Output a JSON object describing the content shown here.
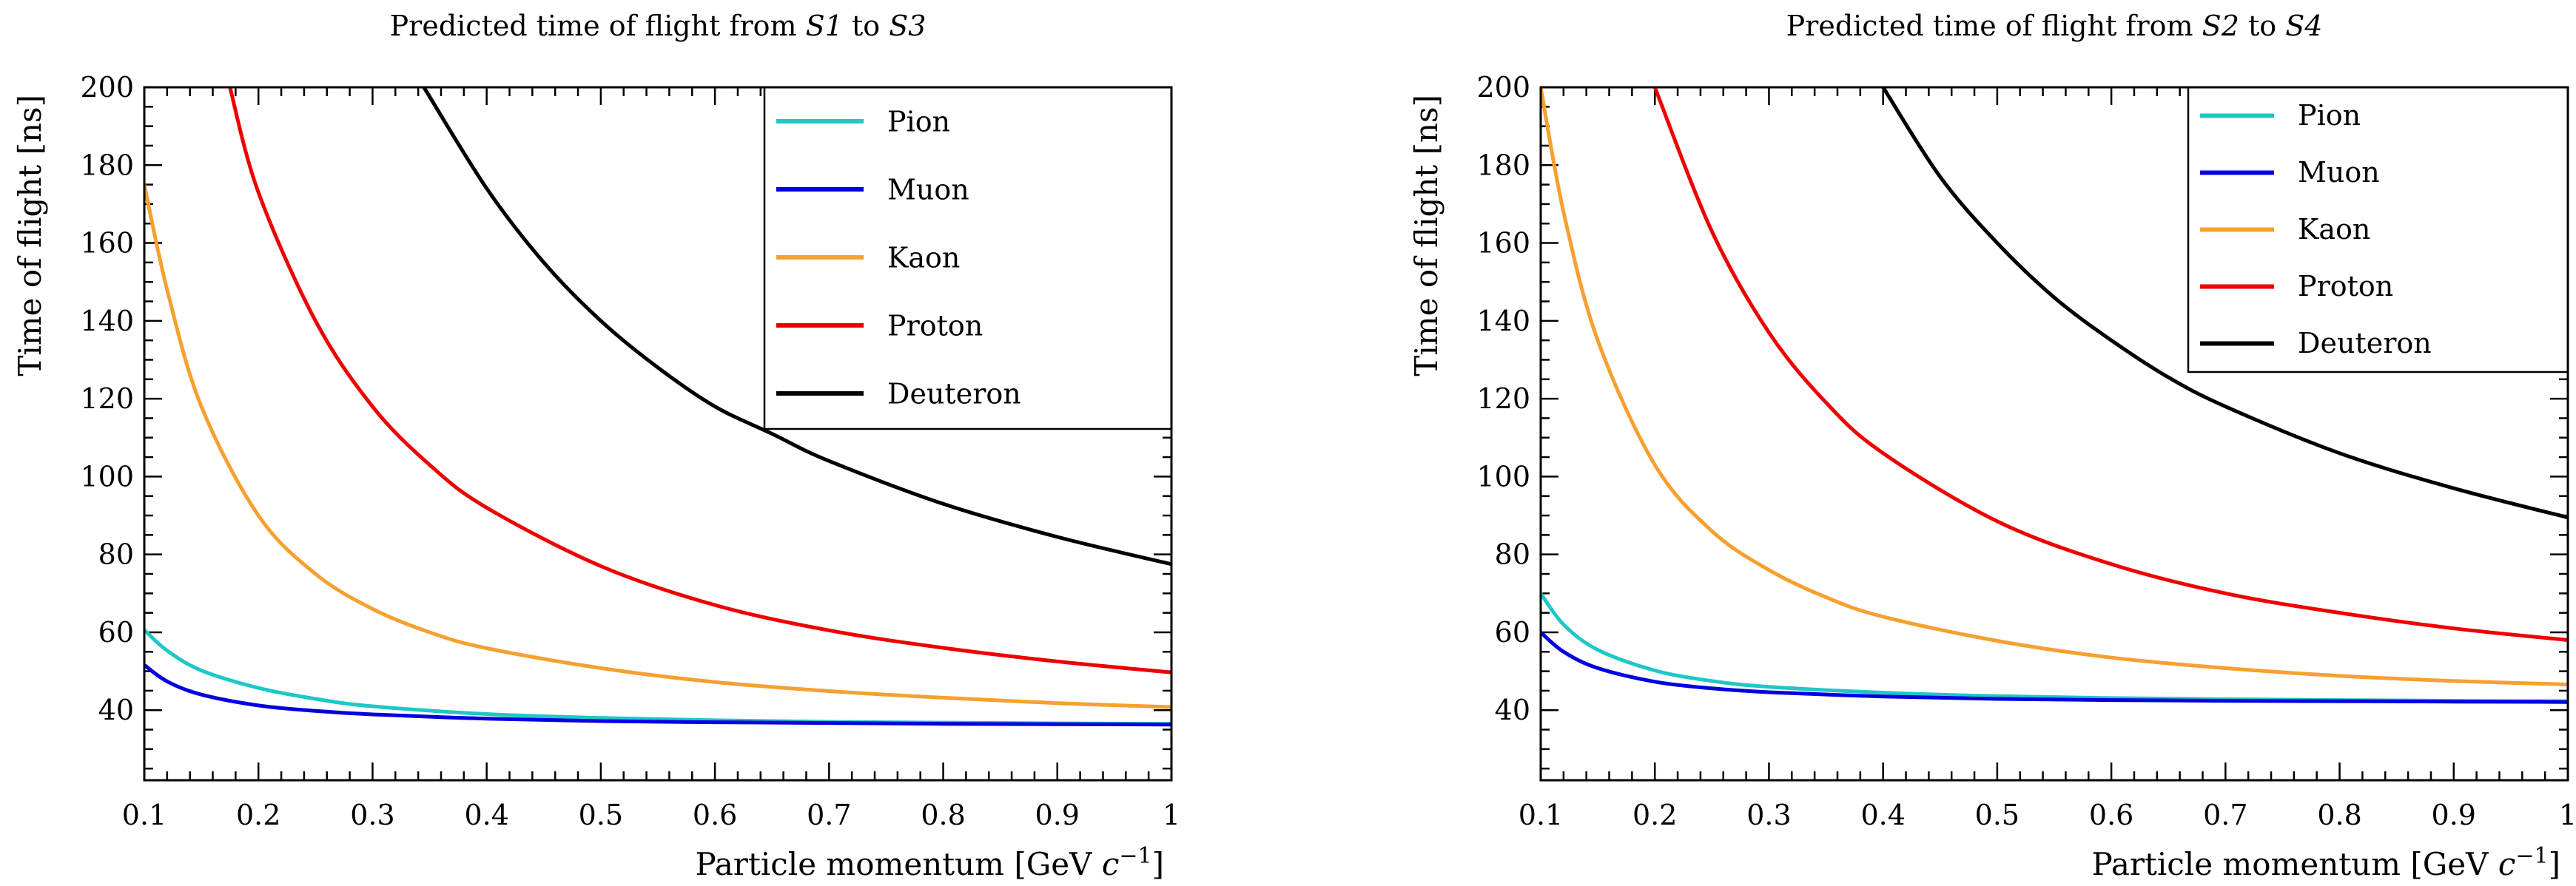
{
  "chart_data": [
    {
      "type": "line",
      "title": {
        "prefix": "Predicted time of flight from ",
        "from": "S1",
        "mid": " to ",
        "to": "S3"
      },
      "xlabel": {
        "text": "Particle momentum [GeV ",
        "unit": "c",
        "exp": "−1",
        "close": "]"
      },
      "ylabel": "Time of flight [ns]",
      "xlim": [
        0.1,
        1.0
      ],
      "ylim": [
        22,
        200
      ],
      "xticks": [
        0.1,
        0.2,
        0.3,
        0.4,
        0.5,
        0.6,
        0.7,
        0.8,
        0.9,
        1.0
      ],
      "xtick_labels": [
        "0.1",
        "0.2",
        "0.3",
        "0.4",
        "0.5",
        "0.6",
        "0.7",
        "0.8",
        "0.9",
        "1"
      ],
      "yticks": [
        40,
        60,
        80,
        100,
        120,
        140,
        160,
        180,
        200
      ],
      "ytick_labels": [
        "40",
        "60",
        "80",
        "100",
        "120",
        "140",
        "160",
        "180",
        "200"
      ],
      "legend_position": "top-right",
      "series": [
        {
          "name": "Pion",
          "color": "#1fc7c7",
          "x": [
            0.1,
            0.12,
            0.15,
            0.2,
            0.25,
            0.3,
            0.4,
            0.5,
            0.6,
            0.7,
            0.8,
            0.9,
            1.0
          ],
          "values": [
            60.6,
            55.3,
            50.2,
            45.7,
            42.9,
            41.0,
            39.0,
            38.0,
            37.4,
            37.0,
            36.8,
            36.6,
            36.5
          ]
        },
        {
          "name": "Muon",
          "color": "#0000e0",
          "x": [
            0.1,
            0.12,
            0.15,
            0.2,
            0.25,
            0.3,
            0.4,
            0.5,
            0.6,
            0.7,
            0.8,
            0.9,
            1.0
          ],
          "values": [
            51.6,
            47.4,
            44.0,
            41.2,
            39.8,
            38.9,
            37.8,
            37.2,
            36.9,
            36.7,
            36.5,
            36.4,
            36.3
          ]
        },
        {
          "name": "Kaon",
          "color": "#f5a030",
          "x": [
            0.1,
            0.12,
            0.15,
            0.2,
            0.25,
            0.3,
            0.35,
            0.4,
            0.5,
            0.6,
            0.7,
            0.8,
            0.9,
            1.0
          ],
          "values": [
            175.0,
            148.0,
            118.0,
            90.0,
            75.0,
            66.0,
            60.0,
            55.9,
            50.8,
            47.2,
            44.9,
            43.2,
            41.8,
            40.8
          ]
        },
        {
          "name": "Proton",
          "color": "#ee0000",
          "x": [
            0.175,
            0.2,
            0.25,
            0.3,
            0.35,
            0.4,
            0.5,
            0.6,
            0.7,
            0.8,
            0.9,
            1.0
          ],
          "values": [
            200.0,
            173.0,
            140.0,
            118.0,
            103.0,
            92.0,
            77.0,
            67.0,
            60.5,
            56.0,
            52.5,
            49.7
          ]
        },
        {
          "name": "Deuteron",
          "color": "#000000",
          "x": [
            0.345,
            0.4,
            0.45,
            0.5,
            0.55,
            0.6,
            0.65,
            0.7,
            0.8,
            0.9,
            1.0
          ],
          "values": [
            200.0,
            174.0,
            155.0,
            140.0,
            128.0,
            118.0,
            111.0,
            104.0,
            93.0,
            84.5,
            77.5
          ]
        }
      ]
    },
    {
      "type": "line",
      "title": {
        "prefix": "Predicted time of flight from ",
        "from": "S2",
        "mid": " to ",
        "to": "S4"
      },
      "xlabel": {
        "text": "Particle momentum [GeV ",
        "unit": "c",
        "exp": "−1",
        "close": "]"
      },
      "ylabel": "Time of flight [ns]",
      "xlim": [
        0.1,
        1.0
      ],
      "ylim": [
        22,
        200
      ],
      "xticks": [
        0.1,
        0.2,
        0.3,
        0.4,
        0.5,
        0.6,
        0.7,
        0.8,
        0.9,
        1.0
      ],
      "xtick_labels": [
        "0.1",
        "0.2",
        "0.3",
        "0.4",
        "0.5",
        "0.6",
        "0.7",
        "0.8",
        "0.9",
        "1"
      ],
      "yticks": [
        40,
        60,
        80,
        100,
        120,
        140,
        160,
        180,
        200
      ],
      "ytick_labels": [
        "40",
        "60",
        "80",
        "100",
        "120",
        "140",
        "160",
        "180",
        "200"
      ],
      "legend_position": "top-right",
      "series": [
        {
          "name": "Pion",
          "color": "#1fc7c7",
          "x": [
            0.1,
            0.12,
            0.15,
            0.2,
            0.25,
            0.3,
            0.4,
            0.5,
            0.6,
            0.7,
            0.8,
            0.9,
            1.0
          ],
          "values": [
            70.0,
            62.0,
            55.5,
            50.2,
            47.5,
            46.0,
            44.5,
            43.6,
            43.1,
            42.8,
            42.6,
            42.4,
            42.3
          ]
        },
        {
          "name": "Muon",
          "color": "#0000e0",
          "x": [
            0.1,
            0.12,
            0.15,
            0.2,
            0.25,
            0.3,
            0.4,
            0.5,
            0.6,
            0.7,
            0.8,
            0.9,
            1.0
          ],
          "values": [
            60.0,
            55.0,
            50.8,
            47.3,
            45.6,
            44.6,
            43.5,
            42.9,
            42.6,
            42.4,
            42.3,
            42.2,
            42.1
          ]
        },
        {
          "name": "Kaon",
          "color": "#f5a030",
          "x": [
            0.1,
            0.12,
            0.15,
            0.2,
            0.25,
            0.3,
            0.35,
            0.4,
            0.5,
            0.6,
            0.7,
            0.8,
            0.9,
            1.0
          ],
          "values": [
            200.0,
            168.0,
            135.0,
            103.0,
            86.0,
            76.0,
            69.0,
            64.0,
            57.8,
            53.5,
            50.8,
            48.8,
            47.5,
            46.6
          ]
        },
        {
          "name": "Proton",
          "color": "#ee0000",
          "x": [
            0.2,
            0.25,
            0.3,
            0.35,
            0.4,
            0.5,
            0.6,
            0.7,
            0.8,
            0.9,
            1.0
          ],
          "values": [
            200.0,
            163.0,
            137.0,
            119.0,
            106.0,
            88.5,
            77.5,
            70.0,
            65.0,
            61.0,
            58.0
          ]
        },
        {
          "name": "Deuteron",
          "color": "#000000",
          "x": [
            0.4,
            0.45,
            0.5,
            0.55,
            0.6,
            0.65,
            0.7,
            0.8,
            0.9,
            1.0
          ],
          "values": [
            200.0,
            177.0,
            160.0,
            146.0,
            135.0,
            125.5,
            118.0,
            106.0,
            97.0,
            89.5
          ]
        }
      ]
    }
  ]
}
